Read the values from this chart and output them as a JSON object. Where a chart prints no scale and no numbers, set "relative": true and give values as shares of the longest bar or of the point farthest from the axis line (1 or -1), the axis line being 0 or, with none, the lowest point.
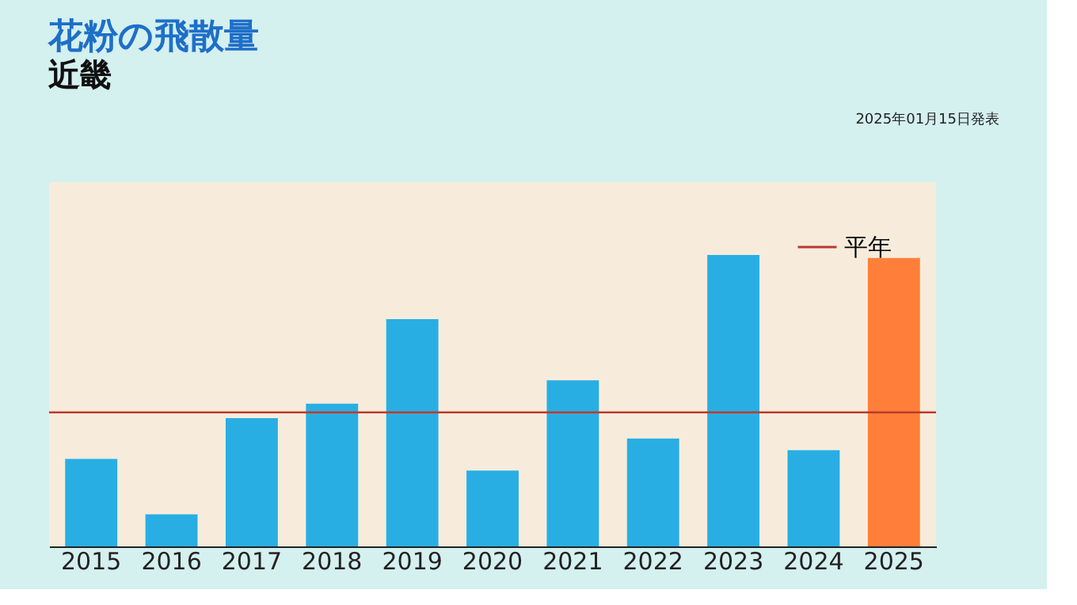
{
  "chart_data": {
    "type": "bar",
    "title": "花粉の飛散量",
    "subtitle": "近畿",
    "relative": true,
    "categories": [
      "2015",
      "2016",
      "2017",
      "2018",
      "2019",
      "2020",
      "2021",
      "2022",
      "2023",
      "2024",
      "2025"
    ],
    "values": [
      0.3,
      0.11,
      0.44,
      0.49,
      0.78,
      0.26,
      0.57,
      0.37,
      1.0,
      0.33,
      0.99
    ],
    "colors": [
      "#29aee3",
      "#29aee3",
      "#29aee3",
      "#29aee3",
      "#29aee3",
      "#29aee3",
      "#29aee3",
      "#29aee3",
      "#29aee3",
      "#29aee3",
      "#ff7f3a"
    ],
    "ref_lines": [
      {
        "axis": "y",
        "value": 0.46,
        "label": "平年",
        "color": "#c0392b"
      }
    ],
    "legend": "top right",
    "grid": false,
    "annotations": [
      "2025年01月15日発表"
    ]
  }
}
